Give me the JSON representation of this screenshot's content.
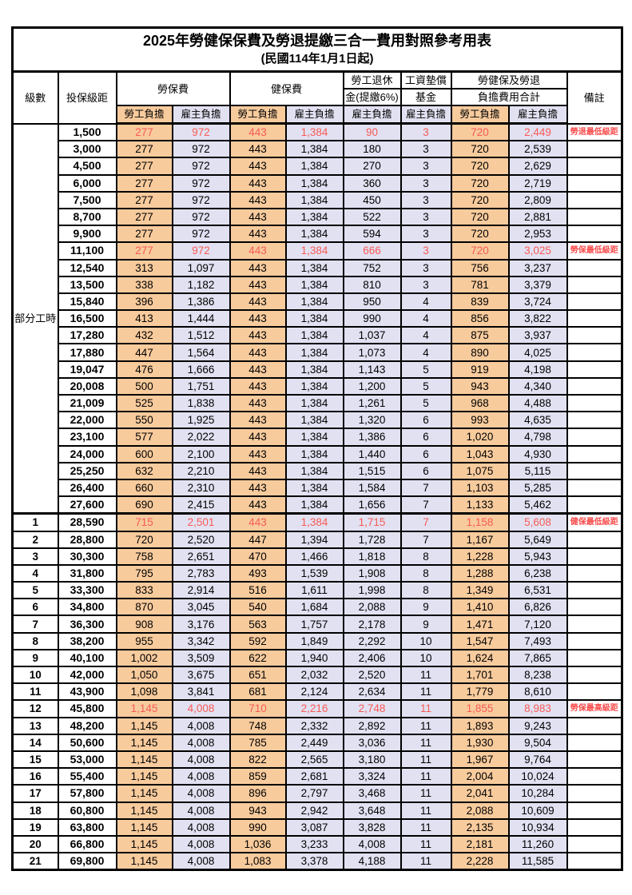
{
  "title": "2025年勞健保保費及勞退提繳三合一費用對照參考用表",
  "subtitle": "(民國114年1月1日起)",
  "colors": {
    "employee_column_bg": "#F8CB9D",
    "employer_column_bg": "#E2E1F2",
    "highlight_text": "#F75B55",
    "remark_text": "#FA4B4B",
    "border": "#000000"
  },
  "header": {
    "level": "級數",
    "salary": "投保級距",
    "labor_insurance": "勞保費",
    "health_insurance": "健保費",
    "pension_top": "勞工退休",
    "pension_bottom": "金(提繳6%)",
    "fund_top": "工資墊償",
    "fund_bottom": "基金",
    "total_top": "勞健保及勞退",
    "total_bottom": "負擔費用合計",
    "remarks": "備註",
    "employee_label": "勞工負擔",
    "employer_label": "雇主負擔"
  },
  "table": {
    "part_time_label": "部分工時",
    "part_time_rowspan": 23,
    "cell_styles": [
      "bg-o",
      "bg-p",
      "bg-o",
      "bg-p",
      "bg-p",
      "bg-p",
      "bg-o",
      "bg-p"
    ],
    "rows": [
      {
        "level": "",
        "salary": "1,500",
        "cells": [
          "277",
          "972",
          "443",
          "1,384",
          "90",
          "3",
          "720",
          "2,449"
        ],
        "note": "勞退最低級距",
        "hl": true,
        "sep": false
      },
      {
        "level": "",
        "salary": "3,000",
        "cells": [
          "277",
          "972",
          "443",
          "1,384",
          "180",
          "3",
          "720",
          "2,539"
        ],
        "note": "",
        "hl": false,
        "sep": false
      },
      {
        "level": "",
        "salary": "4,500",
        "cells": [
          "277",
          "972",
          "443",
          "1,384",
          "270",
          "3",
          "720",
          "2,629"
        ],
        "note": "",
        "hl": false,
        "sep": false
      },
      {
        "level": "",
        "salary": "6,000",
        "cells": [
          "277",
          "972",
          "443",
          "1,384",
          "360",
          "3",
          "720",
          "2,719"
        ],
        "note": "",
        "hl": false,
        "sep": false
      },
      {
        "level": "",
        "salary": "7,500",
        "cells": [
          "277",
          "972",
          "443",
          "1,384",
          "450",
          "3",
          "720",
          "2,809"
        ],
        "note": "",
        "hl": false,
        "sep": false
      },
      {
        "level": "",
        "salary": "8,700",
        "cells": [
          "277",
          "972",
          "443",
          "1,384",
          "522",
          "3",
          "720",
          "2,881"
        ],
        "note": "",
        "hl": false,
        "sep": false
      },
      {
        "level": "",
        "salary": "9,900",
        "cells": [
          "277",
          "972",
          "443",
          "1,384",
          "594",
          "3",
          "720",
          "2,953"
        ],
        "note": "",
        "hl": false,
        "sep": false
      },
      {
        "level": "",
        "salary": "11,100",
        "cells": [
          "277",
          "972",
          "443",
          "1,384",
          "666",
          "3",
          "720",
          "3,025"
        ],
        "note": "勞保最低級距",
        "hl": true,
        "sep": false
      },
      {
        "level": "",
        "salary": "12,540",
        "cells": [
          "313",
          "1,097",
          "443",
          "1,384",
          "752",
          "3",
          "756",
          "3,237"
        ],
        "note": "",
        "hl": false,
        "sep": false
      },
      {
        "level": "",
        "salary": "13,500",
        "cells": [
          "338",
          "1,182",
          "443",
          "1,384",
          "810",
          "3",
          "781",
          "3,379"
        ],
        "note": "",
        "hl": false,
        "sep": false
      },
      {
        "level": "",
        "salary": "15,840",
        "cells": [
          "396",
          "1,386",
          "443",
          "1,384",
          "950",
          "4",
          "839",
          "3,724"
        ],
        "note": "",
        "hl": false,
        "sep": false
      },
      {
        "level": "",
        "salary": "16,500",
        "cells": [
          "413",
          "1,444",
          "443",
          "1,384",
          "990",
          "4",
          "856",
          "3,822"
        ],
        "note": "",
        "hl": false,
        "sep": false
      },
      {
        "level": "",
        "salary": "17,280",
        "cells": [
          "432",
          "1,512",
          "443",
          "1,384",
          "1,037",
          "4",
          "875",
          "3,937"
        ],
        "note": "",
        "hl": false,
        "sep": false
      },
      {
        "level": "",
        "salary": "17,880",
        "cells": [
          "447",
          "1,564",
          "443",
          "1,384",
          "1,073",
          "4",
          "890",
          "4,025"
        ],
        "note": "",
        "hl": false,
        "sep": false
      },
      {
        "level": "",
        "salary": "19,047",
        "cells": [
          "476",
          "1,666",
          "443",
          "1,384",
          "1,143",
          "5",
          "919",
          "4,198"
        ],
        "note": "",
        "hl": false,
        "sep": false
      },
      {
        "level": "",
        "salary": "20,008",
        "cells": [
          "500",
          "1,751",
          "443",
          "1,384",
          "1,200",
          "5",
          "943",
          "4,340"
        ],
        "note": "",
        "hl": false,
        "sep": false
      },
      {
        "level": "",
        "salary": "21,009",
        "cells": [
          "525",
          "1,838",
          "443",
          "1,384",
          "1,261",
          "5",
          "968",
          "4,488"
        ],
        "note": "",
        "hl": false,
        "sep": false
      },
      {
        "level": "",
        "salary": "22,000",
        "cells": [
          "550",
          "1,925",
          "443",
          "1,384",
          "1,320",
          "6",
          "993",
          "4,635"
        ],
        "note": "",
        "hl": false,
        "sep": false
      },
      {
        "level": "",
        "salary": "23,100",
        "cells": [
          "577",
          "2,022",
          "443",
          "1,384",
          "1,386",
          "6",
          "1,020",
          "4,798"
        ],
        "note": "",
        "hl": false,
        "sep": false
      },
      {
        "level": "",
        "salary": "24,000",
        "cells": [
          "600",
          "2,100",
          "443",
          "1,384",
          "1,440",
          "6",
          "1,043",
          "4,930"
        ],
        "note": "",
        "hl": false,
        "sep": false
      },
      {
        "level": "",
        "salary": "25,250",
        "cells": [
          "632",
          "2,210",
          "443",
          "1,384",
          "1,515",
          "6",
          "1,075",
          "5,115"
        ],
        "note": "",
        "hl": false,
        "sep": false
      },
      {
        "level": "",
        "salary": "26,400",
        "cells": [
          "660",
          "2,310",
          "443",
          "1,384",
          "1,584",
          "7",
          "1,103",
          "5,285"
        ],
        "note": "",
        "hl": false,
        "sep": false
      },
      {
        "level": "",
        "salary": "27,600",
        "cells": [
          "690",
          "2,415",
          "443",
          "1,384",
          "1,656",
          "7",
          "1,133",
          "5,462"
        ],
        "note": "",
        "hl": false,
        "sep": false
      },
      {
        "level": "1",
        "salary": "28,590",
        "cells": [
          "715",
          "2,501",
          "443",
          "1,384",
          "1,715",
          "7",
          "1,158",
          "5,608"
        ],
        "note": "健保最低級距",
        "hl": true,
        "sep": true
      },
      {
        "level": "2",
        "salary": "28,800",
        "cells": [
          "720",
          "2,520",
          "447",
          "1,394",
          "1,728",
          "7",
          "1,167",
          "5,649"
        ],
        "note": "",
        "hl": false,
        "sep": false
      },
      {
        "level": "3",
        "salary": "30,300",
        "cells": [
          "758",
          "2,651",
          "470",
          "1,466",
          "1,818",
          "8",
          "1,228",
          "5,943"
        ],
        "note": "",
        "hl": false,
        "sep": false
      },
      {
        "level": "4",
        "salary": "31,800",
        "cells": [
          "795",
          "2,783",
          "493",
          "1,539",
          "1,908",
          "8",
          "1,288",
          "6,238"
        ],
        "note": "",
        "hl": false,
        "sep": false
      },
      {
        "level": "5",
        "salary": "33,300",
        "cells": [
          "833",
          "2,914",
          "516",
          "1,611",
          "1,998",
          "8",
          "1,349",
          "6,531"
        ],
        "note": "",
        "hl": false,
        "sep": false
      },
      {
        "level": "6",
        "salary": "34,800",
        "cells": [
          "870",
          "3,045",
          "540",
          "1,684",
          "2,088",
          "9",
          "1,410",
          "6,826"
        ],
        "note": "",
        "hl": false,
        "sep": false
      },
      {
        "level": "7",
        "salary": "36,300",
        "cells": [
          "908",
          "3,176",
          "563",
          "1,757",
          "2,178",
          "9",
          "1,471",
          "7,120"
        ],
        "note": "",
        "hl": false,
        "sep": false
      },
      {
        "level": "8",
        "salary": "38,200",
        "cells": [
          "955",
          "3,342",
          "592",
          "1,849",
          "2,292",
          "10",
          "1,547",
          "7,493"
        ],
        "note": "",
        "hl": false,
        "sep": false
      },
      {
        "level": "9",
        "salary": "40,100",
        "cells": [
          "1,002",
          "3,509",
          "622",
          "1,940",
          "2,406",
          "10",
          "1,624",
          "7,865"
        ],
        "note": "",
        "hl": false,
        "sep": false
      },
      {
        "level": "10",
        "salary": "42,000",
        "cells": [
          "1,050",
          "3,675",
          "651",
          "2,032",
          "2,520",
          "11",
          "1,701",
          "8,238"
        ],
        "note": "",
        "hl": false,
        "sep": false
      },
      {
        "level": "11",
        "salary": "43,900",
        "cells": [
          "1,098",
          "3,841",
          "681",
          "2,124",
          "2,634",
          "11",
          "1,779",
          "8,610"
        ],
        "note": "",
        "hl": false,
        "sep": false
      },
      {
        "level": "12",
        "salary": "45,800",
        "cells": [
          "1,145",
          "4,008",
          "710",
          "2,216",
          "2,748",
          "11",
          "1,855",
          "8,983"
        ],
        "note": "勞保最高級距",
        "hl": true,
        "sep": false
      },
      {
        "level": "13",
        "salary": "48,200",
        "cells": [
          "1,145",
          "4,008",
          "748",
          "2,332",
          "2,892",
          "11",
          "1,893",
          "9,243"
        ],
        "note": "",
        "hl": false,
        "sep": false
      },
      {
        "level": "14",
        "salary": "50,600",
        "cells": [
          "1,145",
          "4,008",
          "785",
          "2,449",
          "3,036",
          "11",
          "1,930",
          "9,504"
        ],
        "note": "",
        "hl": false,
        "sep": false
      },
      {
        "level": "15",
        "salary": "53,000",
        "cells": [
          "1,145",
          "4,008",
          "822",
          "2,565",
          "3,180",
          "11",
          "1,967",
          "9,764"
        ],
        "note": "",
        "hl": false,
        "sep": false
      },
      {
        "level": "16",
        "salary": "55,400",
        "cells": [
          "1,145",
          "4,008",
          "859",
          "2,681",
          "3,324",
          "11",
          "2,004",
          "10,024"
        ],
        "note": "",
        "hl": false,
        "sep": false
      },
      {
        "level": "17",
        "salary": "57,800",
        "cells": [
          "1,145",
          "4,008",
          "896",
          "2,797",
          "3,468",
          "11",
          "2,041",
          "10,284"
        ],
        "note": "",
        "hl": false,
        "sep": false
      },
      {
        "level": "18",
        "salary": "60,800",
        "cells": [
          "1,145",
          "4,008",
          "943",
          "2,942",
          "3,648",
          "11",
          "2,088",
          "10,609"
        ],
        "note": "",
        "hl": false,
        "sep": false
      },
      {
        "level": "19",
        "salary": "63,800",
        "cells": [
          "1,145",
          "4,008",
          "990",
          "3,087",
          "3,828",
          "11",
          "2,135",
          "10,934"
        ],
        "note": "",
        "hl": false,
        "sep": false
      },
      {
        "level": "20",
        "salary": "66,800",
        "cells": [
          "1,145",
          "4,008",
          "1,036",
          "3,233",
          "4,008",
          "11",
          "2,181",
          "11,260"
        ],
        "note": "",
        "hl": false,
        "sep": false
      },
      {
        "level": "21",
        "salary": "69,800",
        "cells": [
          "1,145",
          "4,008",
          "1,083",
          "3,378",
          "4,188",
          "11",
          "2,228",
          "11,585"
        ],
        "note": "",
        "hl": false,
        "sep": false
      }
    ]
  }
}
